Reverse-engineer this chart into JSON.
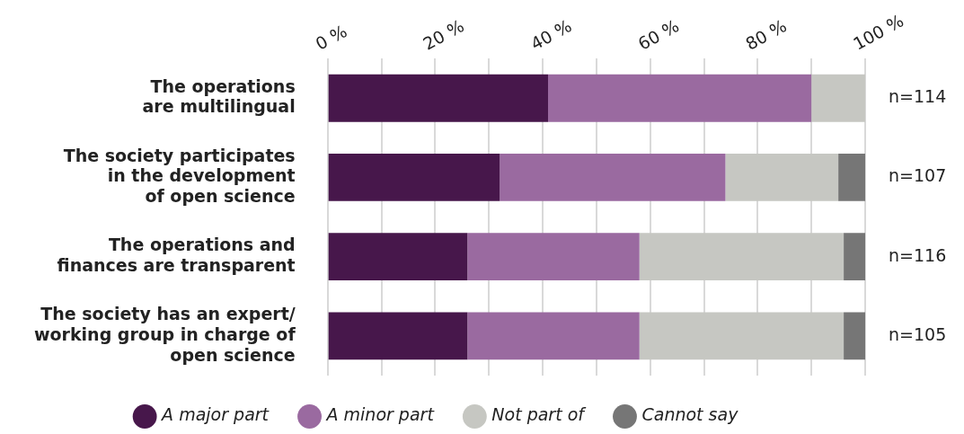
{
  "chart_data": {
    "type": "bar",
    "orientation": "horizontal",
    "stacked": true,
    "categories": [
      "The operations\nare multilingual",
      "The society participates\nin the development\nof open science",
      "The operations and\nfinances are transparent",
      "The society has an expert/\nworking group in charge of\nopen science"
    ],
    "series": [
      {
        "name": "A major part",
        "color": "#47174b",
        "values": [
          41,
          32,
          26,
          26
        ]
      },
      {
        "name": "A minor part",
        "color": "#9a6aa0",
        "values": [
          49,
          42,
          32,
          32
        ]
      },
      {
        "name": "Not part of",
        "color": "#c6c7c2",
        "values": [
          10,
          21,
          38,
          38
        ]
      },
      {
        "name": "Cannot say",
        "color": "#767676",
        "values": [
          0,
          5,
          4,
          4
        ]
      }
    ],
    "xlim": [
      0,
      100
    ],
    "xticks": [
      {
        "value": 0,
        "label": "0 %"
      },
      {
        "value": 10,
        "label": null
      },
      {
        "value": 20,
        "label": "20 %"
      },
      {
        "value": 30,
        "label": null
      },
      {
        "value": 40,
        "label": "40 %"
      },
      {
        "value": 50,
        "label": null
      },
      {
        "value": 60,
        "label": "60 %"
      },
      {
        "value": 70,
        "label": null
      },
      {
        "value": 80,
        "label": "80 %"
      },
      {
        "value": 90,
        "label": null
      },
      {
        "value": 100,
        "label": "100 %"
      }
    ],
    "grid": "x",
    "legend": "bottom",
    "annotations": [
      "n=114",
      "n=107",
      "n=116",
      "n=105"
    ]
  }
}
